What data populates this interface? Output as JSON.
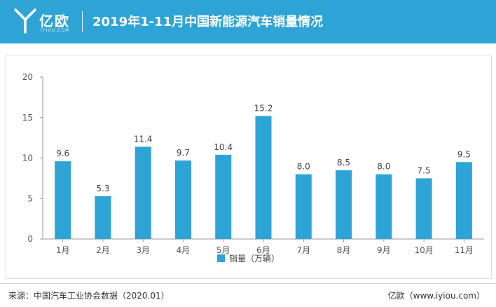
{
  "header": {
    "brand_cn": "亿欧",
    "brand_en": "IYIOU.COM",
    "title": "2019年1-11月中国新能源汽车销量情况",
    "logo_icon": "yiou-logo-icon",
    "bg_color": "#2ea4d6"
  },
  "chart_data": {
    "type": "bar",
    "title": "",
    "xlabel": "",
    "ylabel": "",
    "categories": [
      "1月",
      "2月",
      "3月",
      "4月",
      "5月",
      "6月",
      "7月",
      "8月",
      "9月",
      "10月",
      "11月"
    ],
    "series": [
      {
        "name": "销量（万辆）",
        "values": [
          9.6,
          5.3,
          11.4,
          9.7,
          10.4,
          15.2,
          8.0,
          8.5,
          8.0,
          7.5,
          9.5
        ],
        "labels": [
          "9.6",
          "5.3",
          "11.4",
          "9.7",
          "10.4",
          "15.2",
          "8.0",
          "8.5",
          "8.0",
          "7.5",
          "9.5"
        ],
        "color": "#2ea4d6"
      }
    ],
    "ylim": [
      0,
      20
    ],
    "yticks": [
      0,
      5,
      10,
      15,
      20
    ],
    "grid": false,
    "legend_position": "bottom-center"
  },
  "footer": {
    "source": "来源：中国汽车工业协会数据（2020.01）",
    "brand": "亿欧（www.iyiou.com）"
  }
}
